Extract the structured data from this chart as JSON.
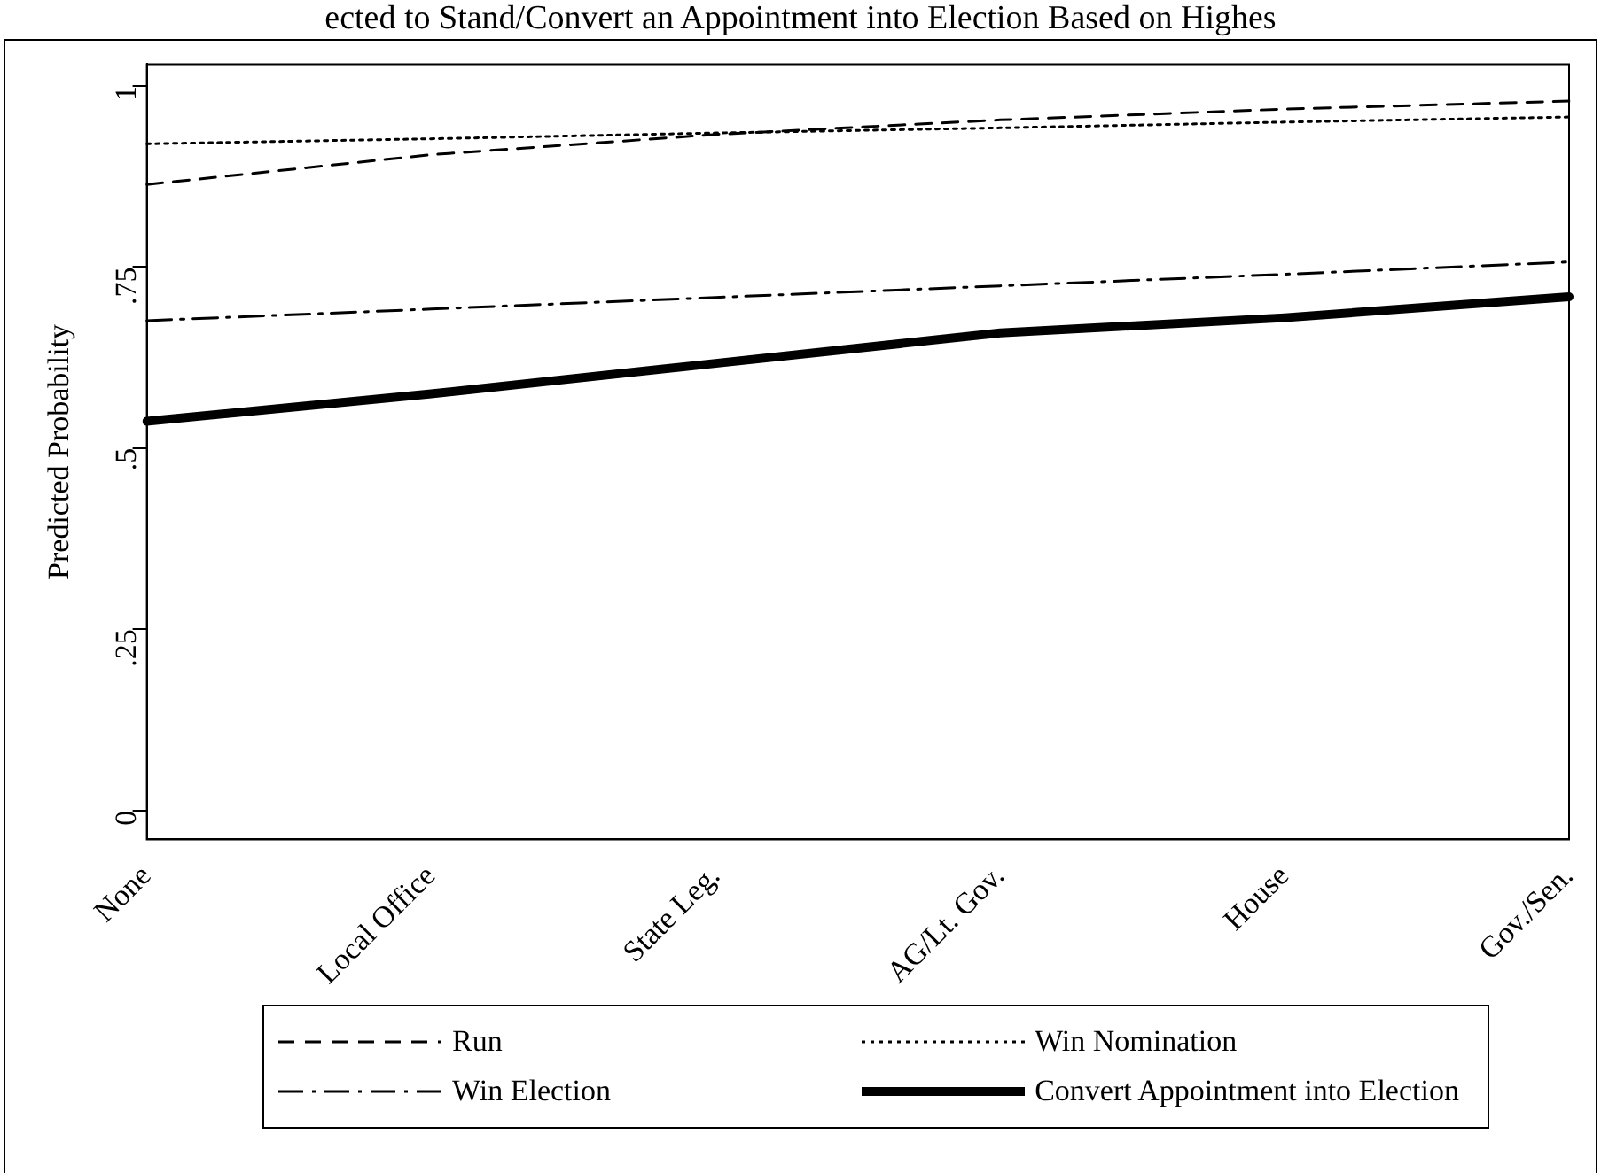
{
  "chart_data": {
    "type": "line",
    "title": "ected to Stand/Convert an Appointment into Election Based on Highes",
    "ylabel": "Predicted Probability",
    "categories": [
      "None",
      "Local Office",
      "State Leg.",
      "AG/Lt. Gov.",
      "House",
      "Gov./Sen."
    ],
    "ylim": [
      -0.04,
      1.03
    ],
    "yticks": [
      {
        "value": 0,
        "label": "0"
      },
      {
        "value": 0.25,
        "label": ".25"
      },
      {
        "value": 0.5,
        "label": ".5"
      },
      {
        "value": 0.75,
        "label": ".75"
      },
      {
        "value": 1,
        "label": "1"
      }
    ],
    "grid": false,
    "legend": "bottom",
    "marker": "none",
    "series": [
      {
        "name": "Run",
        "color": "#000000",
        "line_style": "dashed",
        "values": [
          0.864,
          0.905,
          0.933,
          0.953,
          0.968,
          0.979
        ]
      },
      {
        "name": "Win Nomination",
        "color": "#000000",
        "line_style": "dotted",
        "values": [
          0.92,
          0.927,
          0.935,
          0.942,
          0.95,
          0.957
        ]
      },
      {
        "name": "Win Election",
        "color": "#000000",
        "line_style": "dashdot",
        "values": [
          0.676,
          0.692,
          0.708,
          0.724,
          0.74,
          0.757
        ]
      },
      {
        "name": "Convert Appointment into Election",
        "color": "#000000",
        "line_style": "solid",
        "values": [
          0.537,
          0.575,
          0.617,
          0.659,
          0.68,
          0.709
        ]
      }
    ]
  }
}
